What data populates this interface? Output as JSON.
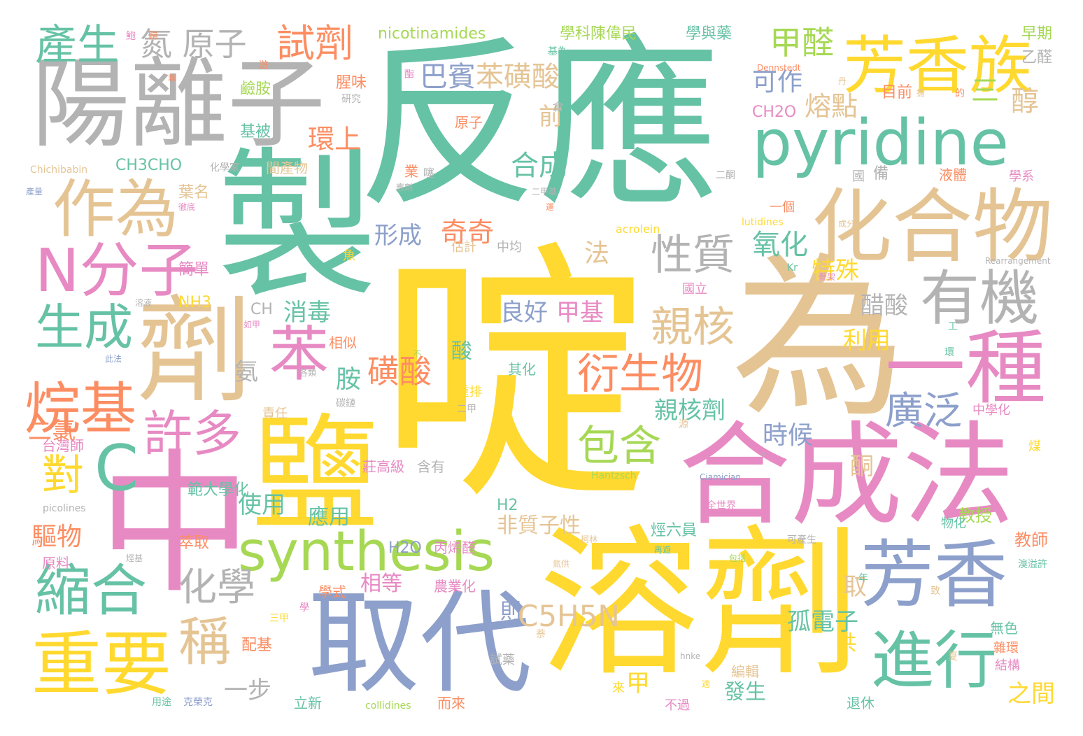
{
  "palette": {
    "green": "#66c2a5",
    "orange": "#fc8d62",
    "blue": "#8da0cb",
    "pink": "#e78ac3",
    "lime": "#a6d854",
    "yellow": "#ffd92f",
    "tan": "#e5c494",
    "gray": "#b3b3b3",
    "background": "#ffffff"
  },
  "words": [
    {
      "text": "啶",
      "color": "yellow"
    },
    {
      "text": "反應",
      "color": "green"
    },
    {
      "text": "為",
      "color": "tan"
    },
    {
      "text": "製",
      "color": "green"
    },
    {
      "text": "陽離子",
      "color": "gray"
    },
    {
      "text": "中",
      "color": "pink"
    },
    {
      "text": "溶劑",
      "color": "yellow"
    },
    {
      "text": "合成法",
      "color": "pink"
    },
    {
      "text": "取代",
      "color": "blue"
    },
    {
      "text": "鹽",
      "color": "yellow"
    },
    {
      "text": "劑",
      "color": "tan"
    },
    {
      "text": "pyridine",
      "color": "green"
    },
    {
      "text": "化合物",
      "color": "tan"
    },
    {
      "text": "synthesis",
      "color": "lime"
    },
    {
      "text": "芳香族",
      "color": "yellow"
    },
    {
      "text": "一種",
      "color": "pink"
    },
    {
      "text": "芳香",
      "color": "blue"
    },
    {
      "text": "重要",
      "color": "yellow"
    },
    {
      "text": "進行",
      "color": "green"
    },
    {
      "text": "有機",
      "color": "gray"
    },
    {
      "text": "作為",
      "color": "tan"
    },
    {
      "text": "N分子",
      "color": "pink"
    },
    {
      "text": "烷基",
      "color": "orange"
    },
    {
      "text": "縮合",
      "color": "green"
    },
    {
      "text": "C",
      "color": "green"
    },
    {
      "text": "苯",
      "color": "pink"
    },
    {
      "text": "許多",
      "color": "pink"
    },
    {
      "text": "衍生物",
      "color": "orange"
    },
    {
      "text": "親核",
      "color": "tan"
    },
    {
      "text": "性質",
      "color": "gray"
    },
    {
      "text": "生成",
      "color": "green"
    },
    {
      "text": "產生",
      "color": "green"
    },
    {
      "text": "試劑",
      "color": "orange"
    },
    {
      "text": "稱",
      "color": "tan"
    },
    {
      "text": "包含",
      "color": "lime"
    },
    {
      "text": "廣泛",
      "color": "blue"
    },
    {
      "text": "化學",
      "color": "gray"
    },
    {
      "text": "對",
      "color": "yellow"
    },
    {
      "text": "氮 原子",
      "color": "gray"
    },
    {
      "text": "甲醛",
      "color": "lime"
    },
    {
      "text": "磺酸",
      "color": "orange"
    },
    {
      "text": "巴賓",
      "color": "blue"
    },
    {
      "text": "苯磺酸",
      "color": "tan"
    },
    {
      "text": "C5H5N",
      "color": "tan"
    },
    {
      "text": "熔點",
      "color": "tan"
    },
    {
      "text": "環上",
      "color": "orange"
    },
    {
      "text": "合成",
      "color": "green"
    },
    {
      "text": "可作",
      "color": "blue"
    },
    {
      "text": "氧化",
      "color": "green"
    },
    {
      "text": "三",
      "color": "lime"
    },
    {
      "text": "醇",
      "color": "tan"
    },
    {
      "text": "奇奇",
      "color": "orange"
    },
    {
      "text": "前",
      "color": "tan"
    },
    {
      "text": "形成",
      "color": "blue"
    },
    {
      "text": "特殊",
      "color": "yellow"
    },
    {
      "text": "醋酸",
      "color": "gray"
    },
    {
      "text": "時候",
      "color": "blue"
    },
    {
      "text": "良好",
      "color": "blue"
    },
    {
      "text": "甲基",
      "color": "pink"
    },
    {
      "text": "親核劑",
      "color": "green"
    },
    {
      "text": "法",
      "color": "tan"
    },
    {
      "text": "利用",
      "color": "yellow"
    },
    {
      "text": "酮",
      "color": "tan"
    },
    {
      "text": "消毒",
      "color": "green"
    },
    {
      "text": "胺",
      "color": "green"
    },
    {
      "text": "氨",
      "color": "gray"
    },
    {
      "text": "酸",
      "color": "green"
    },
    {
      "text": "二氯",
      "color": "orange"
    },
    {
      "text": "驅物",
      "color": "orange"
    },
    {
      "text": "使用",
      "color": "green"
    },
    {
      "text": "應用",
      "color": "green"
    },
    {
      "text": "非質子性",
      "color": "tan"
    },
    {
      "text": "相等",
      "color": "pink"
    },
    {
      "text": "孤電子",
      "color": "green"
    },
    {
      "text": "共",
      "color": "yellow"
    },
    {
      "text": "取",
      "color": "tan"
    },
    {
      "text": "一步",
      "color": "gray"
    },
    {
      "text": "甲",
      "color": "yellow"
    },
    {
      "text": "發生",
      "color": "green"
    },
    {
      "text": "之間",
      "color": "yellow"
    },
    {
      "text": "則",
      "color": "blue"
    },
    {
      "text": "教授",
      "color": "lime"
    },
    {
      "text": "教師",
      "color": "orange"
    },
    {
      "text": "nicotinamides",
      "color": "lime"
    },
    {
      "text": "學科陳偉民",
      "color": "lime"
    },
    {
      "text": "學與藥",
      "color": "green"
    },
    {
      "text": "早期",
      "color": "lime"
    },
    {
      "text": "乙醛",
      "color": "gray"
    },
    {
      "text": "腥味",
      "color": "orange"
    },
    {
      "text": "鹼胺",
      "color": "lime"
    },
    {
      "text": "基被",
      "color": "green"
    },
    {
      "text": "CH3CHO",
      "color": "green"
    },
    {
      "text": "CH2O",
      "color": "pink"
    },
    {
      "text": "目前",
      "color": "orange"
    },
    {
      "text": "間產物",
      "color": "tan"
    },
    {
      "text": "葉名",
      "color": "tan"
    },
    {
      "text": "簡單",
      "color": "pink"
    },
    {
      "text": "NH3",
      "color": "yellow"
    },
    {
      "text": "CH",
      "color": "gray"
    },
    {
      "text": "範大學化",
      "color": "green"
    },
    {
      "text": "H2",
      "color": "green"
    },
    {
      "text": "H2O",
      "color": "blue"
    },
    {
      "text": "丙烯醛",
      "color": "pink"
    },
    {
      "text": "萃取",
      "color": "orange"
    },
    {
      "text": "烴六員",
      "color": "green"
    },
    {
      "text": "莊高級",
      "color": "pink"
    },
    {
      "text": "含有",
      "color": "gray"
    },
    {
      "text": "台灣師",
      "color": "pink"
    },
    {
      "text": "原料",
      "color": "pink"
    },
    {
      "text": "學式",
      "color": "orange"
    },
    {
      "text": "農業化",
      "color": "pink"
    },
    {
      "text": "配基",
      "color": "orange"
    },
    {
      "text": "立新",
      "color": "green"
    },
    {
      "text": "而來",
      "color": "orange"
    },
    {
      "text": "退休",
      "color": "green"
    },
    {
      "text": "無色",
      "color": "green"
    },
    {
      "text": "雜環",
      "color": "orange"
    },
    {
      "text": "結構",
      "color": "pink"
    },
    {
      "text": "液體",
      "color": "orange"
    },
    {
      "text": "學系",
      "color": "pink"
    },
    {
      "text": "國",
      "color": "gray"
    },
    {
      "text": "備",
      "color": "gray"
    },
    {
      "text": "一個",
      "color": "orange"
    },
    {
      "text": "acrolein",
      "color": "yellow"
    },
    {
      "text": "中均",
      "color": "gray"
    },
    {
      "text": "估計",
      "color": "tan"
    },
    {
      "text": "魚",
      "color": "yellow"
    },
    {
      "text": "國立",
      "color": "pink"
    },
    {
      "text": "中學化",
      "color": "pink"
    },
    {
      "text": "物化",
      "color": "green"
    },
    {
      "text": "溴溢許",
      "color": "green"
    },
    {
      "text": "Chichibabin",
      "color": "tan"
    },
    {
      "text": "化學家",
      "color": "gray"
    },
    {
      "text": "picolines",
      "color": "gray"
    },
    {
      "text": "collidines",
      "color": "lime"
    },
    {
      "text": "lutidines",
      "color": "yellow"
    },
    {
      "text": "Hantzsch",
      "color": "lime"
    },
    {
      "text": "Ciamician",
      "color": "blue"
    },
    {
      "text": "Dennstedt",
      "color": "orange"
    },
    {
      "text": "Rearrangement",
      "color": "gray"
    },
    {
      "text": "Kr",
      "color": "green"
    },
    {
      "text": "全世界",
      "color": "pink"
    },
    {
      "text": "可產生",
      "color": "gray"
    },
    {
      "text": "二甲基",
      "color": "gray"
    },
    {
      "text": "二酮",
      "color": "gray"
    },
    {
      "text": "成分",
      "color": "tan"
    },
    {
      "text": "研究",
      "color": "gray"
    },
    {
      "text": "基為",
      "color": "green"
    },
    {
      "text": "業",
      "color": "orange"
    },
    {
      "text": "倉",
      "color": "gray"
    },
    {
      "text": "原子",
      "color": "orange"
    },
    {
      "text": "相似",
      "color": "orange"
    },
    {
      "text": "其化",
      "color": "green"
    },
    {
      "text": "重排",
      "color": "yellow"
    },
    {
      "text": "二甲",
      "color": "gray"
    },
    {
      "text": "碳鏈",
      "color": "gray"
    },
    {
      "text": "責任",
      "color": "tan"
    },
    {
      "text": "烴基",
      "color": "gray"
    },
    {
      "text": "氮供",
      "color": "tan"
    },
    {
      "text": "包括",
      "color": "lime"
    },
    {
      "text": "柯林",
      "color": "tan"
    },
    {
      "text": "再遊",
      "color": "green"
    },
    {
      "text": "試藥",
      "color": "gray"
    },
    {
      "text": "用途",
      "color": "green"
    },
    {
      "text": "克榮克",
      "color": "blue"
    },
    {
      "text": "編輯",
      "color": "tan"
    },
    {
      "text": "不過",
      "color": "pink"
    },
    {
      "text": "來",
      "color": "yellow"
    },
    {
      "text": "源",
      "color": "tan"
    },
    {
      "text": "環",
      "color": "green"
    },
    {
      "text": "煤",
      "color": "yellow"
    },
    {
      "text": "工",
      "color": "green"
    },
    {
      "text": "骨架",
      "color": "pink"
    },
    {
      "text": "年",
      "color": "green"
    },
    {
      "text": "致",
      "color": "tan"
    },
    {
      "text": "夏",
      "color": "tan"
    },
    {
      "text": "運",
      "color": "orange"
    },
    {
      "text": "丹",
      "color": "tan"
    },
    {
      "text": "擔",
      "color": "tan"
    },
    {
      "text": "的",
      "color": "orange"
    },
    {
      "text": "酯",
      "color": "pink"
    },
    {
      "text": "噻",
      "color": "gray"
    },
    {
      "text": "應劑",
      "color": "gray"
    },
    {
      "text": "徹底",
      "color": "pink"
    },
    {
      "text": "溶液",
      "color": "gray"
    },
    {
      "text": "如甲",
      "color": "pink"
    },
    {
      "text": "此法",
      "color": "blue"
    },
    {
      "text": "各類",
      "color": "gray"
    },
    {
      "text": "不",
      "color": "lime"
    },
    {
      "text": "學",
      "color": "pink"
    },
    {
      "text": "三甲",
      "color": "yellow"
    },
    {
      "text": "滸",
      "color": "orange"
    },
    {
      "text": "華",
      "color": "orange"
    },
    {
      "text": "鮑",
      "color": "pink"
    },
    {
      "text": "歸",
      "color": "orange"
    },
    {
      "text": "萘",
      "color": "tan"
    },
    {
      "text": "產量",
      "color": "blue"
    },
    {
      "text": "。",
      "color": "gray"
    },
    {
      "text": "hnke",
      "color": "gray"
    },
    {
      "text": "適",
      "color": "yellow"
    }
  ]
}
